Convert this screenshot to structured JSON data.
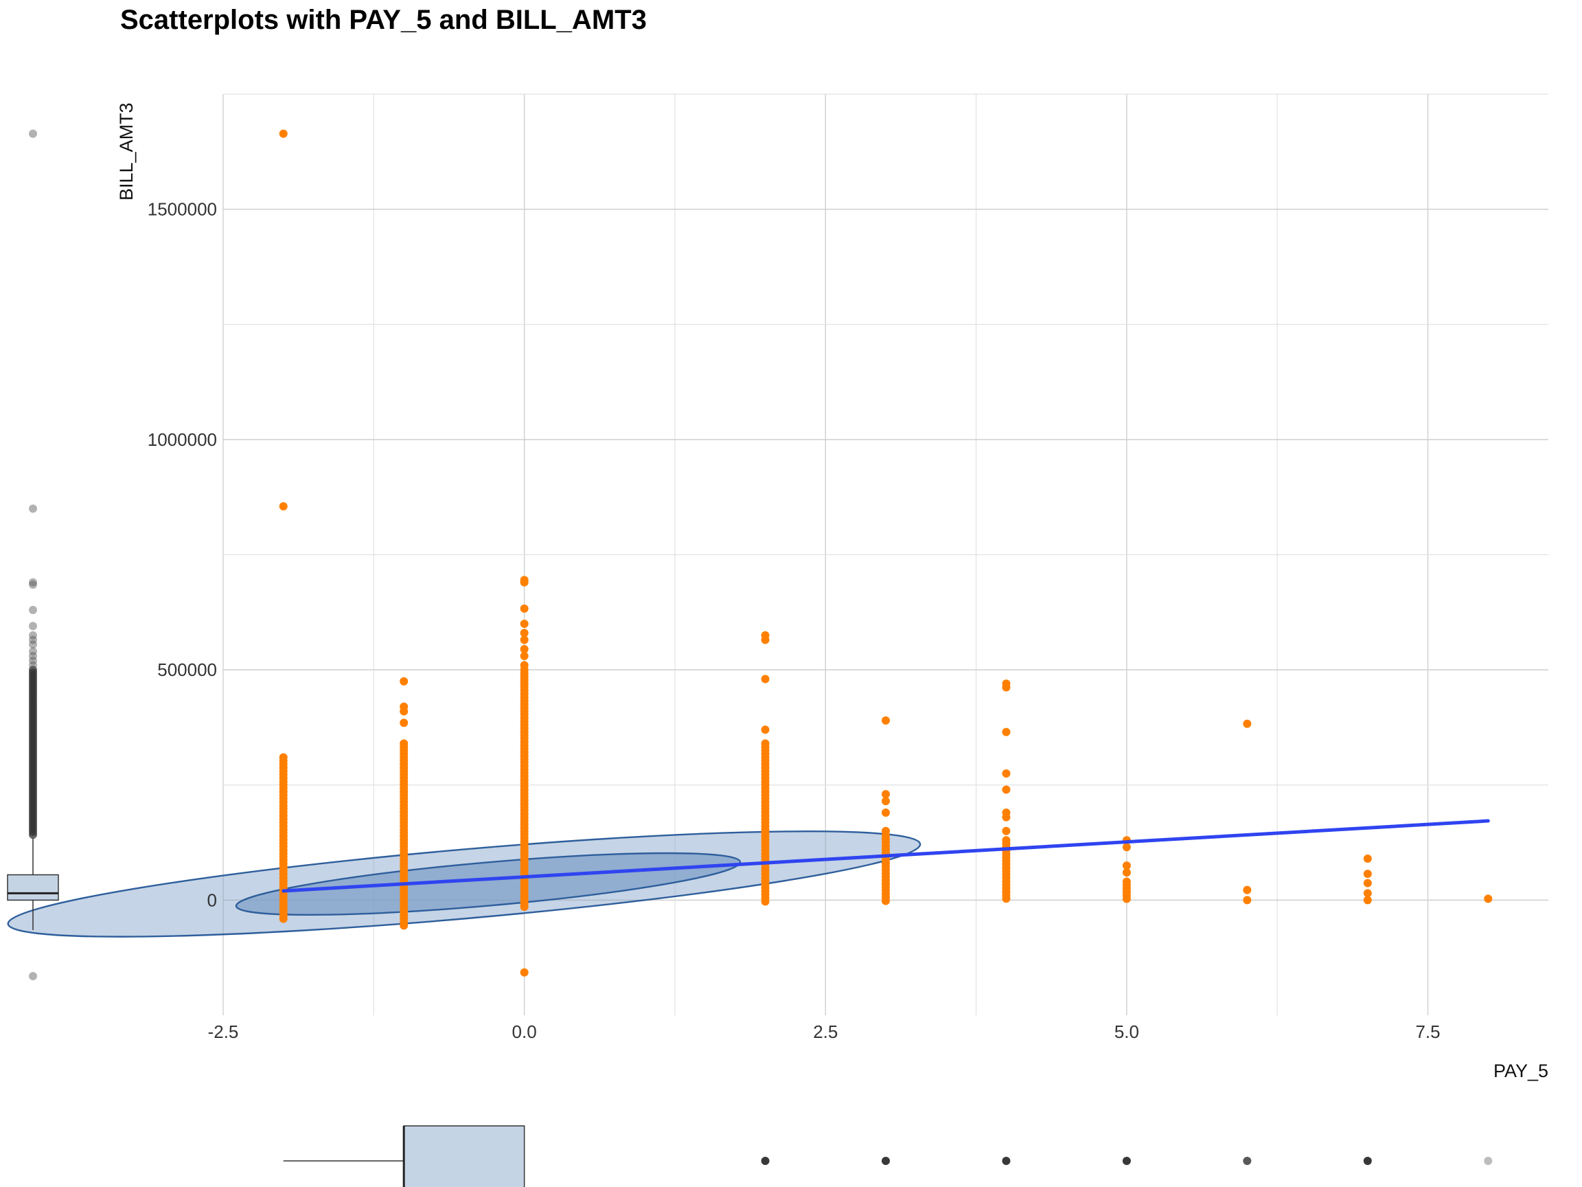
{
  "chart_data": {
    "type": "scatter",
    "title": "Scatterplots with PAY_5 and BILL_AMT3",
    "xlabel": "PAY_5",
    "ylabel": "BILL_AMT3",
    "xlim": [
      -2.5,
      8.5
    ],
    "ylim": [
      -250000,
      1750000
    ],
    "x_ticks": [
      -2.5,
      0.0,
      2.5,
      5.0,
      7.5
    ],
    "x_tick_labels": [
      "-2.5",
      "0.0",
      "2.5",
      "5.0",
      "7.5"
    ],
    "y_ticks": [
      0,
      500000,
      1000000,
      1500000
    ],
    "y_tick_labels": [
      "0",
      "500000",
      "1000000",
      "1500000"
    ],
    "grid": true,
    "colors": {
      "points": "#FF8000",
      "fit_line": "#2F44F0",
      "ellipse_fill": "#7FA0C8",
      "ellipse_stroke": "#2E5E9C",
      "boxplot_fill": "#C5D4E5"
    },
    "point_columns": [
      {
        "x": -2,
        "min": -45000,
        "max": 310000,
        "extra": [
          855000,
          1664000
        ]
      },
      {
        "x": -1,
        "min": -60000,
        "max": 340000,
        "extra": [
          385000,
          410000,
          420000,
          475000
        ]
      },
      {
        "x": 0,
        "min": -15000,
        "max": 500000,
        "extra": [
          -157000,
          510000,
          530000,
          545000,
          565000,
          580000,
          600000,
          633000,
          690000,
          695000
        ]
      },
      {
        "x": 2,
        "min": -10000,
        "max": 340000,
        "extra": [
          370000,
          480000,
          565000,
          575000
        ]
      },
      {
        "x": 3,
        "min": -5000,
        "max": 140000,
        "extra": [
          150000,
          190000,
          215000,
          230000,
          390000
        ]
      },
      {
        "x": 4,
        "min": -2000,
        "max": 130000,
        "extra": [
          150000,
          180000,
          190000,
          240000,
          275000,
          365000,
          462000,
          470000
        ]
      },
      {
        "x": 5,
        "min": 0,
        "max": 40000,
        "extra": [
          60000,
          75000,
          115000,
          130000
        ]
      },
      {
        "x": 6,
        "min": 0,
        "max": 0,
        "extra": [
          0,
          22000,
          383000
        ]
      },
      {
        "x": 7,
        "min": 0,
        "max": 0,
        "extra": [
          0,
          15000,
          37000,
          57000,
          90000
        ]
      },
      {
        "x": 8,
        "min": 0,
        "max": 0,
        "extra": [
          3000
        ]
      }
    ],
    "fit_line": {
      "x": [
        -2,
        8
      ],
      "y": [
        20000,
        172000
      ]
    },
    "ellipses": [
      {
        "level": "outer",
        "cx": -0.5,
        "cy": 35000,
        "rx": 3.8,
        "ry": 75000,
        "rotation_deg": -5
      },
      {
        "level": "inner",
        "cx": -0.3,
        "cy": 35000,
        "rx": 2.1,
        "ry": 47000,
        "rotation_deg": -5
      }
    ],
    "y_marginal_boxplot": {
      "q1": 0,
      "median": 15000,
      "q3": 55000,
      "whisker_low": -65000,
      "whisker_high": 135000,
      "outliers": [
        -165000,
        850000,
        1664000,
        685000,
        690000,
        630000,
        595000,
        575000,
        565000,
        555000,
        540000,
        530000,
        520000,
        510000
      ]
    },
    "x_marginal_boxplot": {
      "q1": -1,
      "median": -1,
      "q3": 0,
      "whisker_low": -2,
      "whisker_high": 0,
      "outliers": [
        2,
        3,
        4,
        5,
        6,
        7,
        8
      ]
    }
  }
}
